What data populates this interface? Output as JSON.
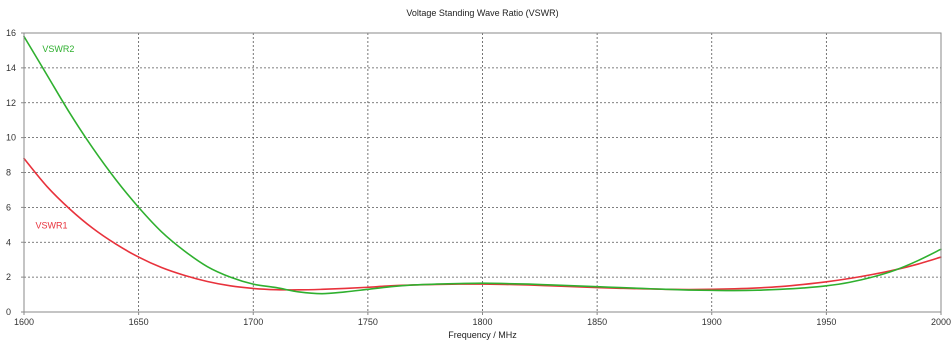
{
  "chart_data": {
    "type": "line",
    "title": "Voltage Standing Wave Ratio (VSWR)",
    "xlabel": "Frequency / MHz",
    "ylabel": "",
    "xlim": [
      1600,
      2000
    ],
    "ylim": [
      0,
      16
    ],
    "xticks": [
      1600,
      1650,
      1700,
      1750,
      1800,
      1850,
      1900,
      1950,
      2000
    ],
    "yticks": [
      0,
      2,
      4,
      6,
      8,
      10,
      12,
      14,
      16
    ],
    "grid": true,
    "series": [
      {
        "name": "VSWR1",
        "color": "#e8323c",
        "label_at": [
          1605,
          4.8
        ],
        "x": [
          1600,
          1610,
          1620,
          1630,
          1640,
          1650,
          1660,
          1670,
          1680,
          1690,
          1700,
          1710,
          1720,
          1730,
          1740,
          1750,
          1760,
          1770,
          1780,
          1790,
          1800,
          1810,
          1820,
          1830,
          1840,
          1850,
          1860,
          1870,
          1880,
          1890,
          1900,
          1910,
          1920,
          1930,
          1940,
          1950,
          1960,
          1970,
          1980,
          1990,
          2000
        ],
        "y": [
          8.8,
          7.2,
          5.9,
          4.8,
          3.9,
          3.15,
          2.55,
          2.1,
          1.75,
          1.5,
          1.35,
          1.28,
          1.27,
          1.3,
          1.35,
          1.42,
          1.5,
          1.55,
          1.58,
          1.6,
          1.6,
          1.58,
          1.55,
          1.5,
          1.45,
          1.4,
          1.36,
          1.33,
          1.3,
          1.29,
          1.3,
          1.33,
          1.38,
          1.46,
          1.58,
          1.73,
          1.92,
          2.15,
          2.42,
          2.75,
          3.15
        ]
      },
      {
        "name": "VSWR2",
        "color": "#2fb02f",
        "label_at": [
          1608,
          14.9
        ],
        "x": [
          1600,
          1610,
          1620,
          1630,
          1640,
          1650,
          1660,
          1670,
          1680,
          1690,
          1700,
          1710,
          1720,
          1730,
          1740,
          1750,
          1760,
          1770,
          1780,
          1790,
          1800,
          1810,
          1820,
          1830,
          1840,
          1850,
          1860,
          1870,
          1880,
          1890,
          1900,
          1910,
          1920,
          1930,
          1940,
          1950,
          1960,
          1970,
          1980,
          1990,
          2000
        ],
        "y": [
          15.8,
          13.6,
          11.4,
          9.4,
          7.6,
          6.0,
          4.6,
          3.5,
          2.6,
          2.0,
          1.6,
          1.4,
          1.15,
          1.05,
          1.15,
          1.3,
          1.45,
          1.55,
          1.6,
          1.63,
          1.65,
          1.63,
          1.6,
          1.55,
          1.5,
          1.45,
          1.4,
          1.35,
          1.3,
          1.26,
          1.24,
          1.23,
          1.25,
          1.3,
          1.38,
          1.5,
          1.7,
          2.0,
          2.4,
          2.95,
          3.6
        ]
      }
    ]
  }
}
